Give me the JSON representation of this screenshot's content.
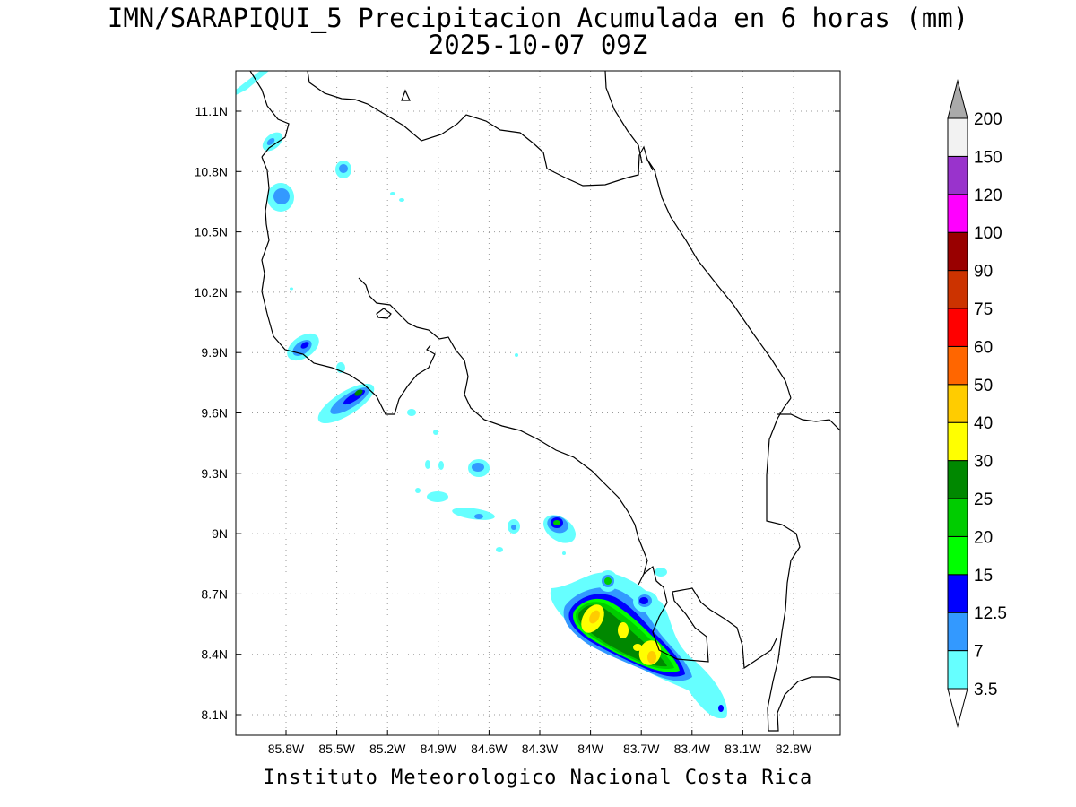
{
  "title": {
    "line1": "IMN/SARAPIQUI_5 Precipitacion Acumulada en 6 horas (mm)",
    "line2": "2025-10-07 09Z"
  },
  "footer": "Instituto Meteorologico Nacional Costa Rica",
  "map": {
    "lon_ticks": [
      "85.8W",
      "85.5W",
      "85.2W",
      "84.9W",
      "84.6W",
      "84.3W",
      "84W",
      "83.7W",
      "83.4W",
      "83.1W",
      "82.8W"
    ],
    "lat_ticks": [
      "11.1N",
      "10.8N",
      "10.5N",
      "10.2N",
      "9.9N",
      "9.6N",
      "9.3N",
      "9N",
      "8.7N",
      "8.4N",
      "8.1N"
    ],
    "grid": true
  },
  "colorbar": {
    "levels": [
      "3.5",
      "7",
      "12.5",
      "15",
      "20",
      "25",
      "30",
      "40",
      "50",
      "60",
      "75",
      "90",
      "100",
      "120",
      "150",
      "200"
    ],
    "colors": [
      "#66ffff",
      "#3399ff",
      "#0000ff",
      "#00ff00",
      "#00cc00",
      "#008800",
      "#ffff00",
      "#ffcc00",
      "#ff6600",
      "#ff0000",
      "#cc3300",
      "#990000",
      "#ff00ff",
      "#9933cc",
      "#f2f2f2"
    ],
    "over_color": "#aaaaaa",
    "under_color": "#ffffff"
  }
}
